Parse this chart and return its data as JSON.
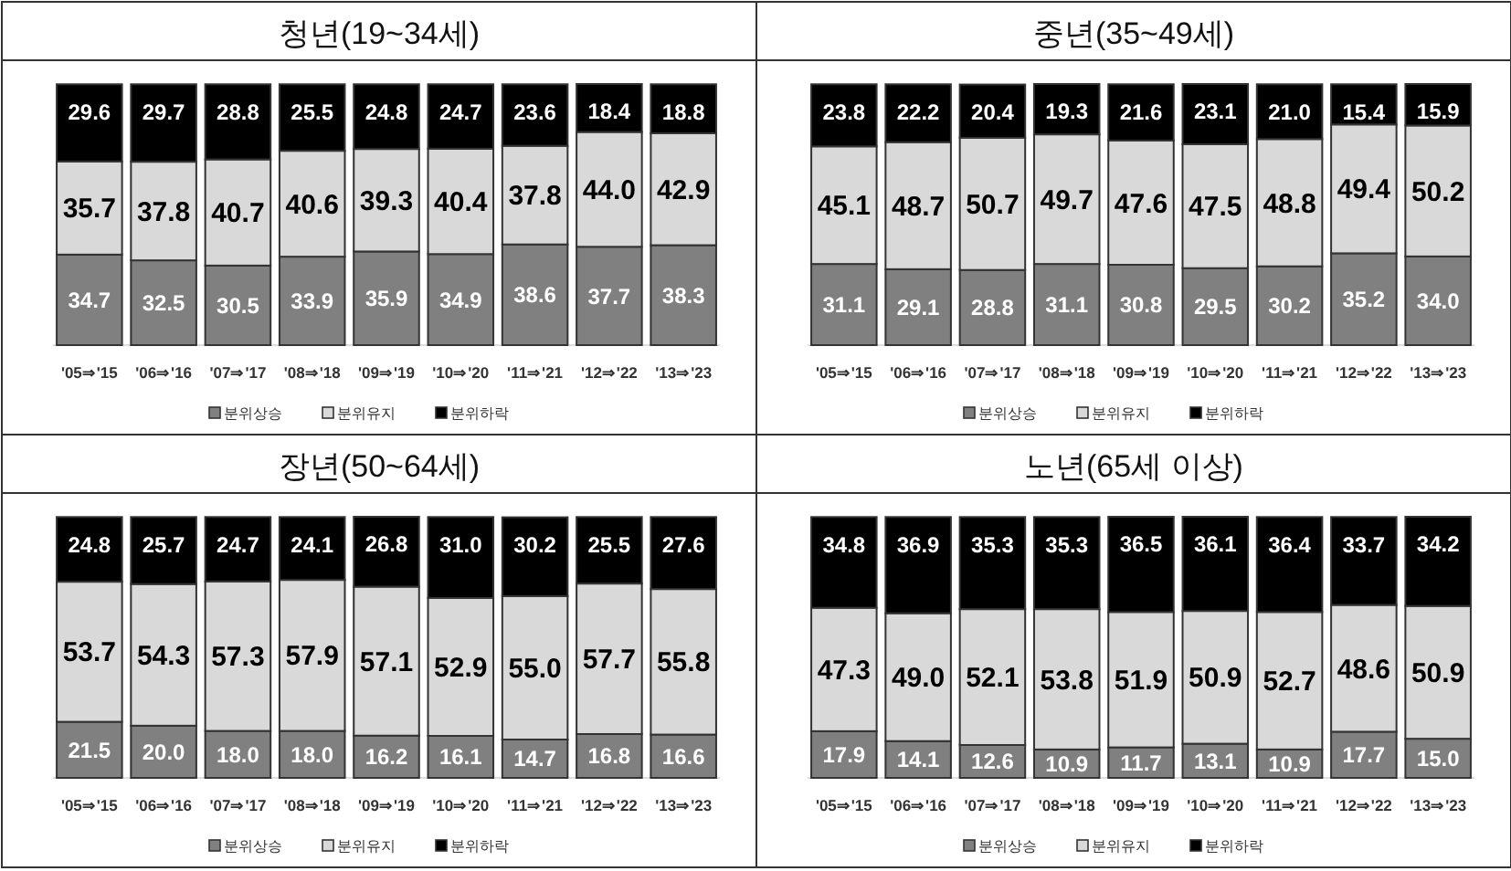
{
  "chart_data": [
    {
      "type": "bar",
      "title": "청년(19~34세)",
      "stacked": true,
      "legend": "bottom",
      "categories": [
        "'05⇒'15",
        "'06⇒'16",
        "'07⇒'17",
        "'08⇒'18",
        "'09⇒'19",
        "'10⇒'20",
        "'11⇒'21",
        "'12⇒'22",
        "'13⇒'23"
      ],
      "series": [
        {
          "name": "분위상승",
          "color": "#808080",
          "values": [
            34.7,
            32.5,
            30.5,
            33.9,
            35.9,
            34.9,
            38.6,
            37.7,
            38.3
          ],
          "value_labels": [
            "34.7",
            "32.5",
            "30.5",
            "33.9",
            "35.9",
            "34.9",
            "38.6",
            "37.7",
            "38.3"
          ]
        },
        {
          "name": "분위유지",
          "color": "#d9d9d9",
          "values": [
            35.7,
            37.8,
            40.7,
            40.6,
            39.3,
            40.4,
            37.8,
            44.0,
            42.9
          ],
          "value_labels": [
            "35.7",
            "37.8",
            "40.7",
            "40.6",
            "39.3",
            "40.4",
            "37.8",
            "44.0",
            "42.9"
          ]
        },
        {
          "name": "분위하락",
          "color": "#000000",
          "values": [
            29.6,
            29.7,
            28.8,
            25.5,
            24.8,
            24.7,
            23.6,
            18.4,
            18.8
          ],
          "value_labels": [
            "29.6",
            "29.7",
            "28.8",
            "25.5",
            "24.8",
            "24.7",
            "23.6",
            "18.4",
            "18.8"
          ]
        }
      ]
    },
    {
      "type": "bar",
      "title": "중년(35~49세)",
      "stacked": true,
      "legend": "bottom",
      "categories": [
        "'05⇒'15",
        "'06⇒'16",
        "'07⇒'17",
        "'08⇒'18",
        "'09⇒'19",
        "'10⇒'20",
        "'11⇒'21",
        "'12⇒'22",
        "'13⇒'23"
      ],
      "series": [
        {
          "name": "분위상승",
          "color": "#808080",
          "values": [
            31.1,
            29.1,
            28.8,
            31.1,
            30.8,
            29.5,
            30.2,
            35.2,
            34.0
          ],
          "value_labels": [
            "31.1",
            "29.1",
            "28.8",
            "31.1",
            "30.8",
            "29.5",
            "30.2",
            "35.2",
            "34.0"
          ]
        },
        {
          "name": "분위유지",
          "color": "#d9d9d9",
          "values": [
            45.1,
            48.7,
            50.7,
            49.7,
            47.6,
            47.5,
            48.8,
            49.4,
            50.2
          ],
          "value_labels": [
            "45.1",
            "48.7",
            "50.7",
            "49.7",
            "47.6",
            "47.5",
            "48.8",
            "49.4",
            "50.2"
          ]
        },
        {
          "name": "분위하락",
          "color": "#000000",
          "values": [
            23.8,
            22.2,
            20.4,
            19.3,
            21.6,
            23.1,
            21.0,
            15.4,
            15.9
          ],
          "value_labels": [
            "23.8",
            "22.2",
            "20.4",
            "19.3",
            "21.6",
            "23.1",
            "21.0",
            "15.4",
            "15.9"
          ]
        }
      ]
    },
    {
      "type": "bar",
      "title": "장년(50~64세)",
      "stacked": true,
      "legend": "bottom",
      "categories": [
        "'05⇒'15",
        "'06⇒'16",
        "'07⇒'17",
        "'08⇒'18",
        "'09⇒'19",
        "'10⇒'20",
        "'11⇒'21",
        "'12⇒'22",
        "'13⇒'23"
      ],
      "series": [
        {
          "name": "분위상승",
          "color": "#808080",
          "values": [
            21.5,
            20.0,
            18.0,
            18.0,
            16.2,
            16.1,
            14.7,
            16.8,
            16.6
          ],
          "value_labels": [
            "21.5",
            "20.0",
            "18.0",
            "18.0",
            "16.2",
            "16.1",
            "14.7",
            "16.8",
            "16.6"
          ]
        },
        {
          "name": "분위유지",
          "color": "#d9d9d9",
          "values": [
            53.7,
            54.3,
            57.3,
            57.9,
            57.1,
            52.9,
            55.0,
            57.7,
            55.8
          ],
          "value_labels": [
            "53.7",
            "54.3",
            "57.3",
            "57.9",
            "57.1",
            "52.9",
            "55.0",
            "57.7",
            "55.8"
          ]
        },
        {
          "name": "분위하락",
          "color": "#000000",
          "values": [
            24.8,
            25.7,
            24.7,
            24.1,
            26.8,
            31.0,
            30.2,
            25.5,
            27.6
          ],
          "value_labels": [
            "24.8",
            "25.7",
            "24.7",
            "24.1",
            "26.8",
            "31.0",
            "30.2",
            "25.5",
            "27.6"
          ]
        }
      ]
    },
    {
      "type": "bar",
      "title": "노년(65세 이상)",
      "stacked": true,
      "legend": "bottom",
      "categories": [
        "'05⇒'15",
        "'06⇒'16",
        "'07⇒'17",
        "'08⇒'18",
        "'09⇒'19",
        "'10⇒'20",
        "'11⇒'21",
        "'12⇒'22",
        "'13⇒'23"
      ],
      "series": [
        {
          "name": "분위상승",
          "color": "#808080",
          "values": [
            17.9,
            14.1,
            12.6,
            10.9,
            11.7,
            13.1,
            10.9,
            17.7,
            15.0
          ],
          "value_labels": [
            "17.9",
            "14.1",
            "12.6",
            "10.9",
            "11.7",
            "13.1",
            "10.9",
            "17.7",
            "15.0"
          ]
        },
        {
          "name": "분위유지",
          "color": "#d9d9d9",
          "values": [
            47.3,
            49.0,
            52.1,
            53.8,
            51.9,
            50.9,
            52.7,
            48.6,
            50.9
          ],
          "value_labels": [
            "47.3",
            "49.0",
            "52.1",
            "53.8",
            "51.9",
            "50.9",
            "52.7",
            "48.6",
            "50.9"
          ]
        },
        {
          "name": "분위하락",
          "color": "#000000",
          "values": [
            34.8,
            36.9,
            35.3,
            35.3,
            36.5,
            36.1,
            36.4,
            33.7,
            34.2
          ],
          "value_labels": [
            "34.8",
            "36.9",
            "35.3",
            "35.3",
            "36.5",
            "36.1",
            "36.4",
            "33.7",
            "34.2"
          ]
        }
      ]
    }
  ]
}
